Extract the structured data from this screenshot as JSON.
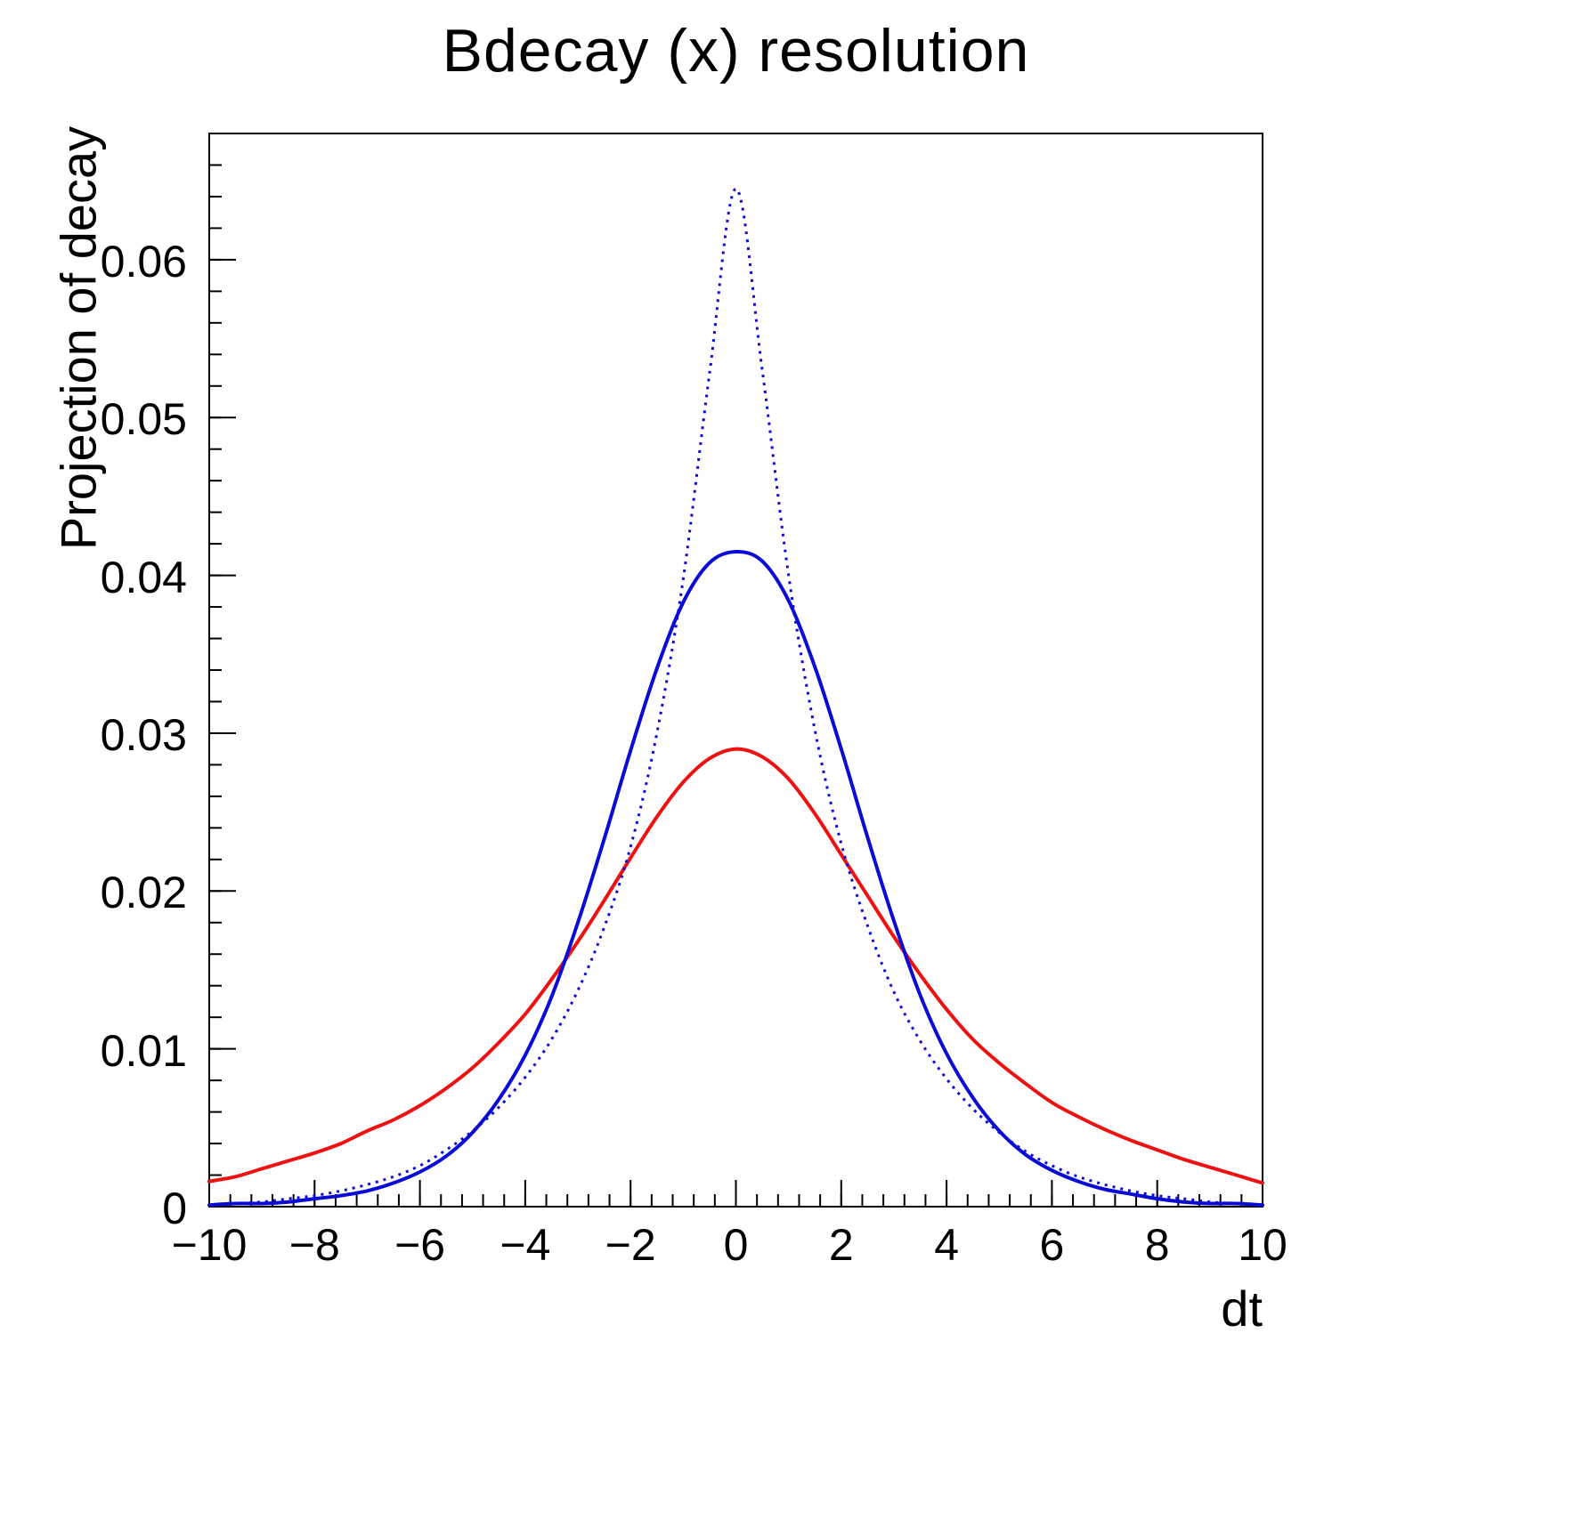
{
  "chart_data": {
    "type": "line",
    "title": "Bdecay (x) resolution",
    "xlabel": "dt",
    "ylabel": "Projection of decay",
    "xlim": [
      -10,
      10
    ],
    "ylim": [
      0,
      0.068
    ],
    "grid": false,
    "legend": "none",
    "frame_color": "#000000",
    "x_major_ticks": [
      -10,
      -8,
      -6,
      -4,
      -2,
      0,
      2,
      4,
      6,
      8,
      10
    ],
    "x_tick_labels": [
      "−10",
      "−8",
      "−6",
      "−4",
      "−2",
      "0",
      "2",
      "4",
      "6",
      "8",
      "10"
    ],
    "x_minor_step": 0.4,
    "y_major_ticks": [
      0,
      0.01,
      0.02,
      0.03,
      0.04,
      0.05,
      0.06
    ],
    "y_tick_labels": [
      "0",
      "0.01",
      "0.02",
      "0.03",
      "0.04",
      "0.05",
      "0.06"
    ],
    "y_minor_step": 0.002,
    "x": [
      -10,
      -9.5,
      -9,
      -8.5,
      -8,
      -7.5,
      -7,
      -6.5,
      -6,
      -5.5,
      -5,
      -4.5,
      -4,
      -3.5,
      -3,
      -2.5,
      -2,
      -1.5,
      -1,
      -0.5,
      0,
      0.5,
      1,
      1.5,
      2,
      2.5,
      3,
      3.5,
      4,
      4.5,
      5,
      5.5,
      6,
      6.5,
      7,
      7.5,
      8,
      8.5,
      9,
      9.5,
      10
    ],
    "series": [
      {
        "name": "red-solid",
        "color": "#ee1111",
        "style": "solid",
        "width": 4,
        "values": [
          0.0016,
          0.0019,
          0.0024,
          0.0029,
          0.0034,
          0.004,
          0.0048,
          0.0055,
          0.0064,
          0.0075,
          0.0088,
          0.0104,
          0.0122,
          0.0144,
          0.0168,
          0.0194,
          0.0221,
          0.0247,
          0.0269,
          0.0284,
          0.029,
          0.0285,
          0.0271,
          0.0249,
          0.0223,
          0.0197,
          0.0171,
          0.0147,
          0.0125,
          0.0106,
          0.0091,
          0.0078,
          0.0066,
          0.0057,
          0.0049,
          0.0042,
          0.0036,
          0.003,
          0.0025,
          0.002,
          0.0015
        ]
      },
      {
        "name": "blue-dotted",
        "color": "#0b0bd6",
        "style": "dotted",
        "width": 3,
        "values": [
          0.0001,
          0.0002,
          0.0003,
          0.0005,
          0.0007,
          0.001,
          0.0014,
          0.0019,
          0.0026,
          0.0036,
          0.0048,
          0.0063,
          0.0082,
          0.0106,
          0.0137,
          0.0177,
          0.0228,
          0.03,
          0.0398,
          0.0528,
          0.0645,
          0.053,
          0.04,
          0.0302,
          0.023,
          0.0178,
          0.0136,
          0.0105,
          0.0081,
          0.0062,
          0.0047,
          0.0035,
          0.0026,
          0.0019,
          0.0014,
          0.001,
          0.0007,
          0.0005,
          0.0003,
          0.0002,
          0.0001
        ]
      },
      {
        "name": "blue-solid",
        "color": "#0b0bd6",
        "style": "solid",
        "width": 4,
        "values": [
          0.0001,
          0.0002,
          0.0002,
          0.0003,
          0.0005,
          0.0007,
          0.001,
          0.0015,
          0.0022,
          0.0032,
          0.0047,
          0.0068,
          0.0096,
          0.0133,
          0.018,
          0.0233,
          0.0289,
          0.0341,
          0.0383,
          0.0408,
          0.0415,
          0.0409,
          0.0384,
          0.0342,
          0.029,
          0.0234,
          0.0181,
          0.0134,
          0.0097,
          0.0069,
          0.0048,
          0.0033,
          0.0023,
          0.0016,
          0.0011,
          0.0008,
          0.0005,
          0.0003,
          0.0002,
          0.0002,
          0.0001
        ]
      }
    ]
  }
}
